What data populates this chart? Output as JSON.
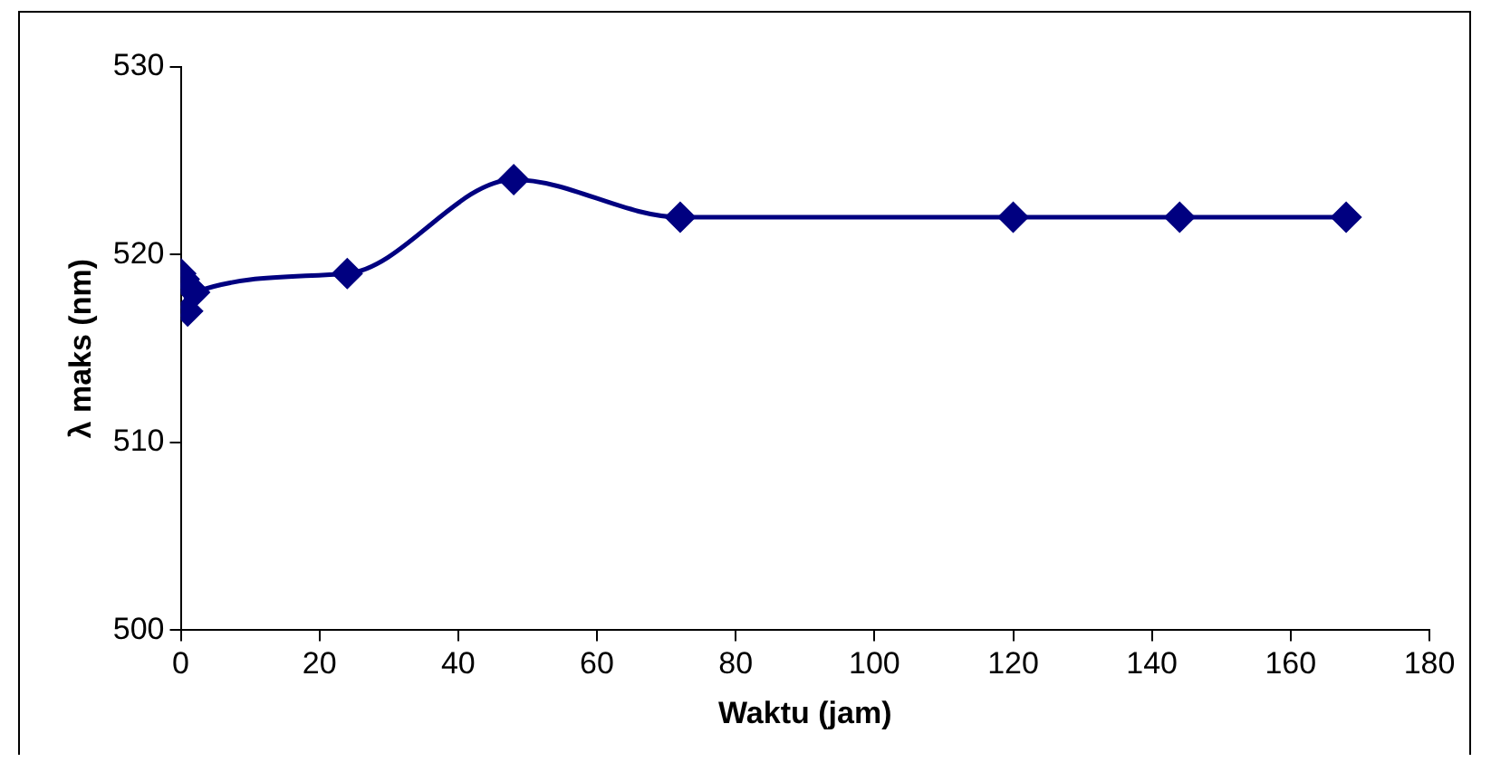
{
  "chart_data": {
    "type": "line",
    "xlabel": "Waktu (jam)",
    "ylabel": "λ maks (nm)",
    "x": [
      0,
      0.5,
      1,
      2,
      24,
      48,
      72,
      120,
      144,
      168
    ],
    "series": [
      {
        "color": "#000080",
        "values": [
          519,
          518.7,
          517,
          518,
          519,
          524,
          522,
          522,
          522,
          522
        ]
      }
    ],
    "xlim": [
      0,
      180
    ],
    "xticks": [
      0,
      20,
      40,
      60,
      80,
      100,
      120,
      140,
      160,
      180
    ],
    "ylim": [
      500,
      530
    ],
    "yticks": [
      500,
      510,
      520,
      530
    ],
    "grid": false,
    "legend": false,
    "marker": "diamond",
    "line_style": "solid"
  }
}
